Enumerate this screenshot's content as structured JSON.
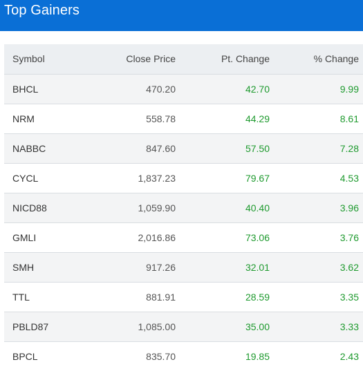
{
  "header": {
    "title": "Top Gainers"
  },
  "table": {
    "columns": [
      "Symbol",
      "Close Price",
      "Pt. Change",
      "% Change"
    ],
    "rows": [
      [
        "BHCL",
        "470.20",
        "42.70",
        "9.99"
      ],
      [
        "NRM",
        "558.78",
        "44.29",
        "8.61"
      ],
      [
        "NABBC",
        "847.60",
        "57.50",
        "7.28"
      ],
      [
        "CYCL",
        "1,837.23",
        "79.67",
        "4.53"
      ],
      [
        "NICD88",
        "1,059.90",
        "40.40",
        "3.96"
      ],
      [
        "GMLI",
        "2,016.86",
        "73.06",
        "3.76"
      ],
      [
        "SMH",
        "917.26",
        "32.01",
        "3.62"
      ],
      [
        "TTL",
        "881.91",
        "28.59",
        "3.35"
      ],
      [
        "PBLD87",
        "1,085.00",
        "35.00",
        "3.33"
      ],
      [
        "BPCL",
        "835.70",
        "19.85",
        "2.43"
      ]
    ]
  },
  "colors": {
    "header_bg": "#0a6fd6",
    "gain": "#1e9a2e"
  }
}
